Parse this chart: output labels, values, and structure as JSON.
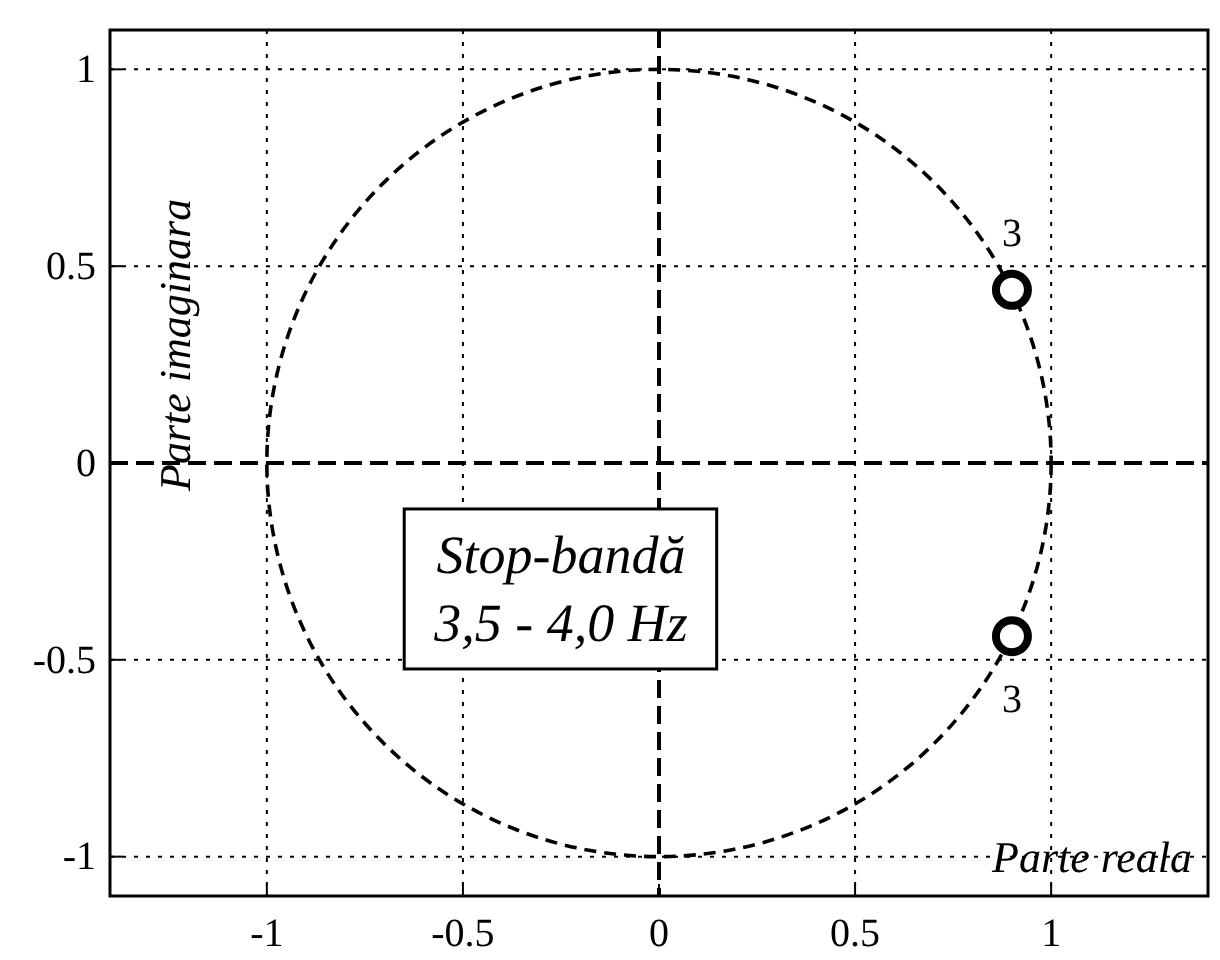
{
  "chart_data": {
    "type": "scatter",
    "xlabel": "Parte reala",
    "ylabel": "Parte imaginara",
    "xlim": [
      -1.4,
      1.4
    ],
    "ylim": [
      -1.1,
      1.1
    ],
    "xticks": [
      -1,
      -0.5,
      0,
      0.5,
      1
    ],
    "yticks": [
      -1,
      -0.5,
      0,
      0.5,
      1
    ],
    "grid": true,
    "series": [
      {
        "color": "#000000",
        "marker": "circle",
        "x": [
          0.9,
          0.9
        ],
        "values": [
          0.44,
          -0.44
        ]
      }
    ],
    "annotations": [
      {
        "text": "3",
        "x": 0.9,
        "y": 0.44
      },
      {
        "text": "3",
        "x": 0.9,
        "y": -0.44
      },
      "Stop-bandă\n3,5 - 4,0 Hz"
    ]
  }
}
